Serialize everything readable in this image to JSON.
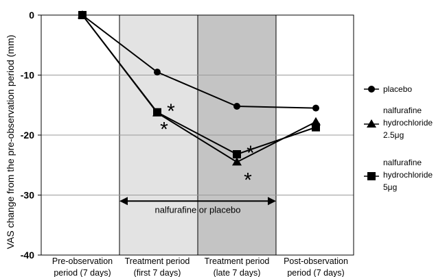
{
  "chart_data": {
    "type": "line",
    "ylabel": "VAS change from the pre-observation period (mm)",
    "ylim": [
      -40,
      0
    ],
    "yticks": [
      "0",
      "-10",
      "-20",
      "-30",
      "-40"
    ],
    "categories": [
      [
        "Pre-observation",
        "period (7 days)"
      ],
      [
        "Treatment period",
        "(first 7 days)"
      ],
      [
        "Treatment period",
        "(late 7 days)"
      ],
      [
        "Post-observation",
        "period (7 days)"
      ]
    ],
    "x_positions": [
      0,
      1,
      2,
      3
    ],
    "shaded_periods": [
      {
        "from": 1,
        "to": 2,
        "color": "#e3e3e3"
      },
      {
        "from": 2,
        "to": 3,
        "color": "#c4c4c4"
      }
    ],
    "annotation": "nalfurafine or placebo",
    "significance_mark": "*",
    "series": [
      {
        "name": "placebo",
        "marker": "circle",
        "values": [
          0,
          -9.5,
          -15.2,
          -15.5
        ]
      },
      {
        "name": "nalfurafine hydrochloride 2.5μg",
        "marker": "triangle",
        "values": [
          0,
          -16.3,
          -24.5,
          -17.8
        ]
      },
      {
        "name": "nalfurafine hydrochloride 5μg",
        "marker": "square",
        "values": [
          0,
          -16.2,
          -23.2,
          -18.7
        ]
      }
    ],
    "significance": [
      {
        "series": 2,
        "x": 1,
        "position": "above-right"
      },
      {
        "series": 1,
        "x": 1,
        "position": "below"
      },
      {
        "series": 2,
        "x": 2,
        "position": "above-right"
      },
      {
        "series": 1,
        "x": 2,
        "position": "below-right"
      }
    ],
    "grid": "horizontal",
    "legend_position": "right",
    "line_color": "#000000"
  },
  "legend": {
    "items": [
      {
        "lines": [
          "placebo"
        ]
      },
      {
        "lines": [
          "nalfurafine",
          "hydrochloride",
          "2.5μg"
        ]
      },
      {
        "lines": [
          "nalfurafine",
          "hydrochloride",
          "5μg"
        ]
      }
    ]
  }
}
